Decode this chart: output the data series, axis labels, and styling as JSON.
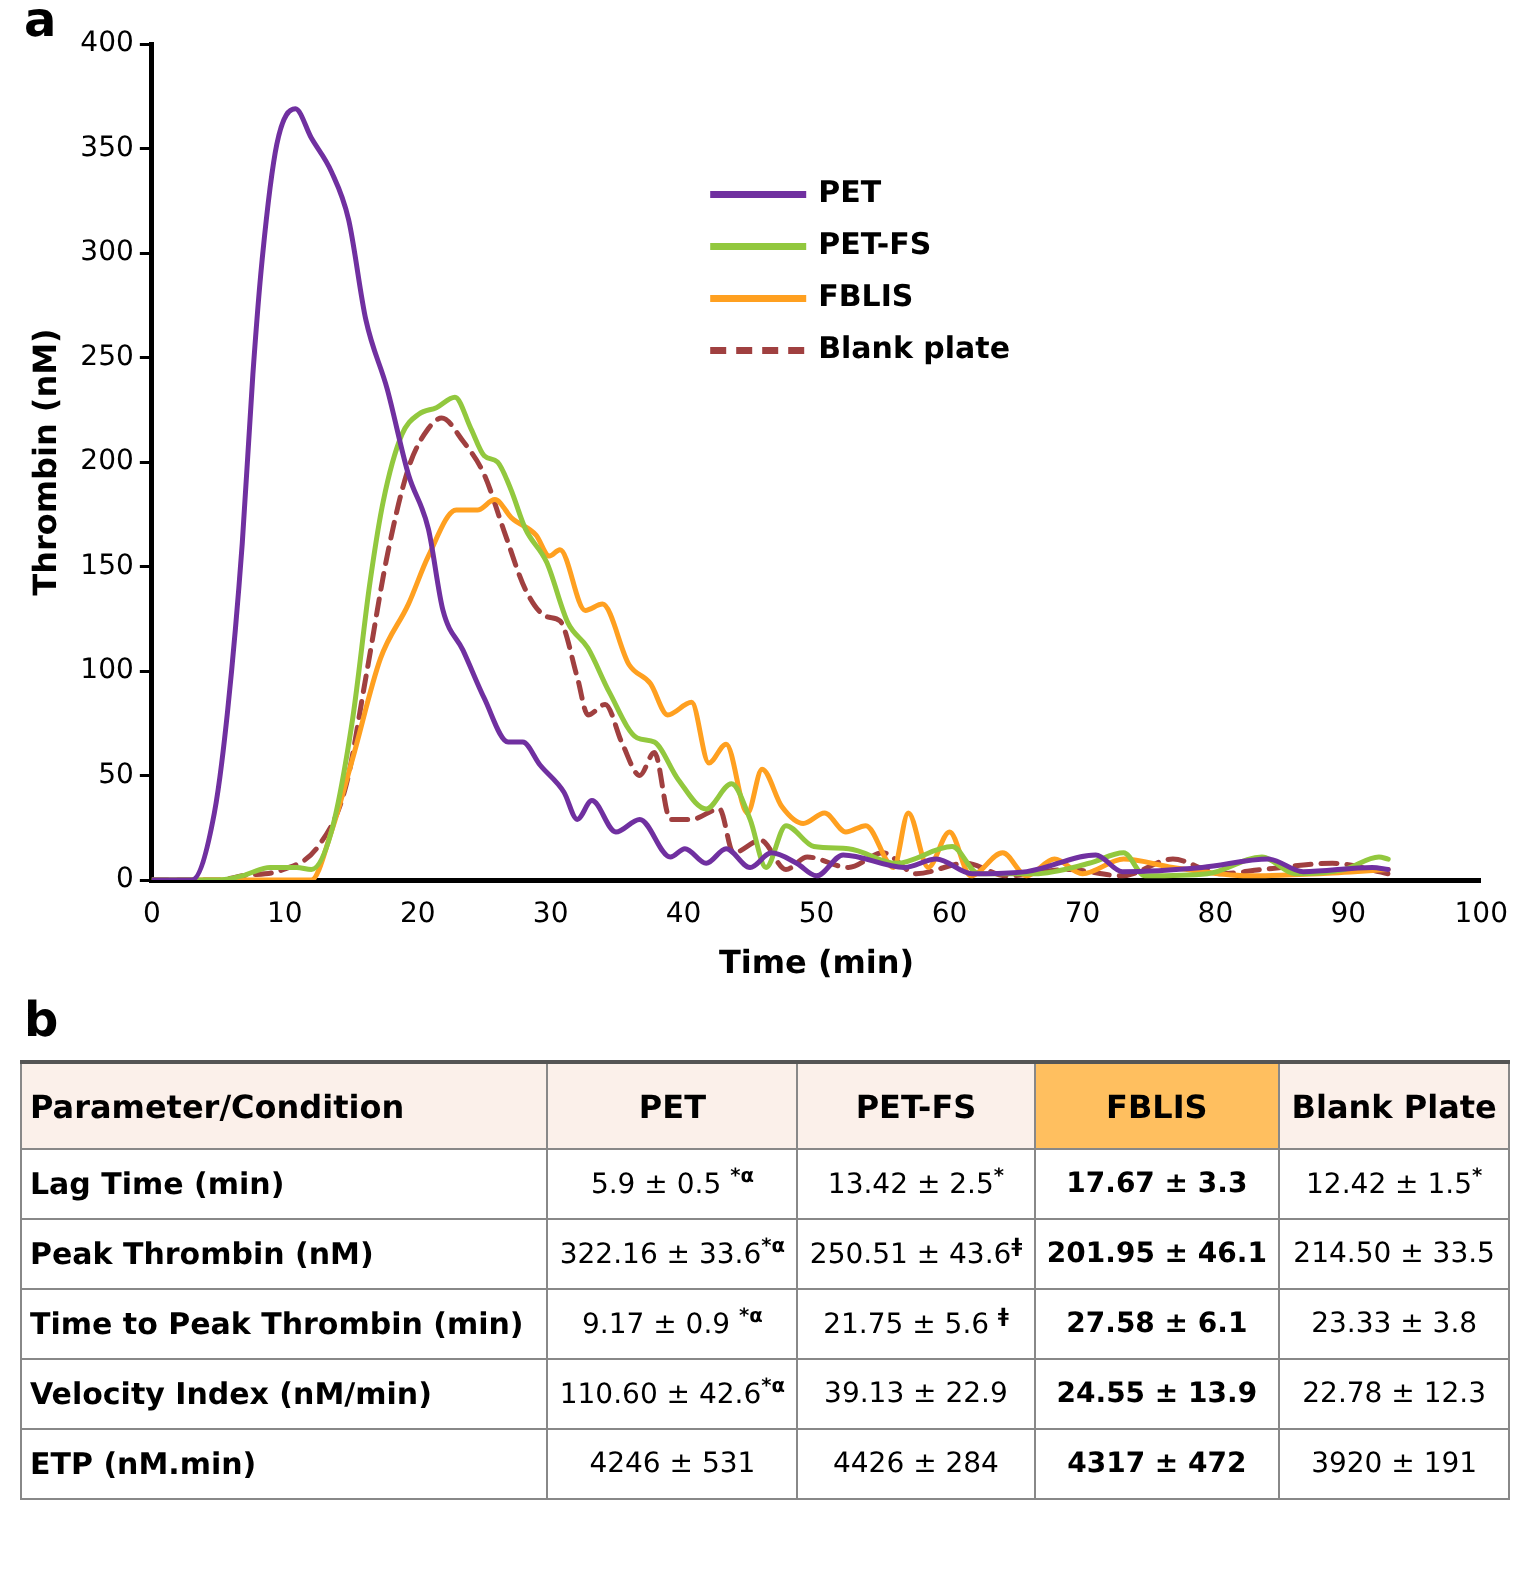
{
  "chart_data": [
    {
      "type": "line",
      "title": "a",
      "xlabel": "Time (min)",
      "ylabel": "Thrombin (nM)",
      "xlim": [
        0,
        100
      ],
      "xticks": [
        0,
        10,
        20,
        30,
        40,
        50,
        60,
        70,
        80,
        90,
        100
      ],
      "ylim": [
        0,
        400
      ],
      "yticks": [
        0,
        50,
        100,
        150,
        200,
        250,
        300,
        350,
        400
      ],
      "grid": false,
      "legend": "top right",
      "marker": "none",
      "series": [
        {
          "name": "PET",
          "color": "#7030a0",
          "line_style": "solid",
          "x": [
            0,
            3,
            4.7,
            5.7,
            6.8,
            7.6,
            8.3,
            9.4,
            10.8,
            12,
            13.5,
            14.8,
            16.1,
            17.7,
            19.3,
            20.8,
            21.9,
            23.4,
            25,
            26.8,
            27.9,
            29.2,
            31,
            32,
            33.1,
            34.9,
            36.7,
            39,
            40.1,
            41.7,
            43.2,
            45,
            46.6,
            48.5,
            50,
            52,
            56.6,
            59,
            61.7,
            65.8,
            71,
            73,
            79,
            84,
            86.6,
            91.8,
            93
          ],
          "values": [
            0,
            0,
            32,
            81,
            161,
            242,
            297,
            352,
            369,
            355,
            339,
            316,
            268,
            235,
            194,
            168,
            129,
            110,
            87,
            66,
            66,
            55,
            42,
            29,
            38,
            23,
            29,
            11,
            15,
            8,
            15,
            6,
            13,
            8,
            2,
            12,
            6,
            10,
            3,
            4,
            12,
            4,
            6,
            10,
            4,
            6,
            5
          ]
        },
        {
          "name": "PET-FS",
          "color": "#92c83e",
          "line_style": "solid",
          "x": [
            0,
            5,
            6.8,
            8.9,
            10.9,
            12,
            13.5,
            15.1,
            16.4,
            17.4,
            18.8,
            20.1,
            21.4,
            22.8,
            24,
            25,
            26,
            27,
            28.1,
            29.7,
            31.3,
            32.8,
            34.4,
            36.5,
            37.8,
            39.6,
            41.7,
            43.6,
            45,
            46.2,
            47.7,
            49.8,
            52.4,
            56,
            60.2,
            62.2,
            66.4,
            70.5,
            73.1,
            74.7,
            79.4,
            83.5,
            86,
            89.7,
            92.3,
            93
          ],
          "values": [
            0,
            0,
            2,
            6,
            6,
            5,
            23,
            77,
            142,
            181,
            213,
            223,
            226,
            231,
            216,
            203,
            200,
            187,
            168,
            152,
            123,
            111,
            90,
            68,
            66,
            48,
            34,
            46,
            29,
            6,
            26,
            16,
            15,
            8,
            16,
            3,
            3,
            8,
            13,
            2,
            3,
            11,
            3,
            5,
            11,
            10
          ]
        },
        {
          "name": "FBLIS",
          "color": "#ffa020",
          "line_style": "solid",
          "x": [
            0,
            12,
            13.5,
            15.1,
            17.2,
            19.3,
            20.8,
            22.9,
            24.5,
            25.8,
            27.1,
            28.9,
            29.9,
            30.7,
            32.6,
            33.9,
            35.9,
            37.5,
            38.8,
            40.6,
            41.9,
            43.2,
            44.8,
            45.9,
            47.4,
            49,
            50.6,
            52.2,
            53.7,
            55.8,
            56.9,
            58.4,
            60,
            61.6,
            64,
            65.8,
            67.9,
            70,
            73.1,
            76.8,
            82.5,
            87.8,
            93
          ],
          "values": [
            0,
            0,
            23,
            58,
            106,
            132,
            155,
            177,
            177,
            182,
            173,
            165,
            155,
            158,
            129,
            132,
            103,
            94,
            79,
            85,
            56,
            65,
            32,
            53,
            35,
            27,
            32,
            23,
            26,
            6,
            32,
            6,
            23,
            2,
            13,
            2,
            10,
            3,
            10,
            6,
            2,
            3,
            5
          ]
        },
        {
          "name": "Blank plate",
          "color": "#a04040",
          "line_style": "dashed",
          "x": [
            0,
            5,
            6.8,
            9.9,
            12.5,
            14.6,
            16.1,
            17.7,
            19.3,
            20.8,
            21.8,
            23.4,
            25,
            26.6,
            28.1,
            29.7,
            30.7,
            32,
            32.8,
            34.1,
            35.4,
            36.7,
            37.8,
            39,
            40.6,
            42.7,
            43.75,
            45.8,
            47.7,
            49.3,
            52.4,
            55,
            57.5,
            61.2,
            64.3,
            69,
            73,
            76.8,
            80.4,
            83.5,
            88.8,
            93
          ],
          "values": [
            0,
            0,
            2,
            5,
            16,
            45,
            97,
            155,
            197,
            216,
            221,
            210,
            194,
            165,
            139,
            126,
            124,
            97,
            79,
            84,
            65,
            50,
            61,
            29,
            29,
            34,
            13,
            19,
            5,
            11,
            6,
            13,
            3,
            8,
            2,
            5,
            2,
            10,
            3,
            5,
            8,
            3
          ]
        }
      ]
    },
    {
      "type": "other",
      "title": "b",
      "categories": [
        "Parameter/Condition",
        "PET",
        "PET-FS",
        "FBLIS",
        "Blank Plate"
      ],
      "colors": [
        "#fbf0ea",
        "#fbf0ea",
        "#fbf0ea",
        "#ffbf5f",
        "#fbf0ea"
      ],
      "y_categories": [
        "Lag Time (min)",
        "Peak Thrombin (nM)",
        "Time to Peak Thrombin (min)",
        "Velocity Index (nM/min)",
        "ETP (nM.min)"
      ],
      "cell_labels": [
        [
          "5.9 ± 0.5 $^{*α}$",
          "13.42 ± 2.5$^{*}$",
          "17.67 ± 3.3",
          "12.42 ± 1.5$^{*}$"
        ],
        [
          "322.16 ± 33.6$^{*α}$",
          "250.51 ± 43.6$^{ǂ}$",
          "201.95 ± 46.1",
          "214.50 ± 33.5"
        ],
        [
          "9.17 ± 0.9 $^{*α}$",
          "21.75 ± 5.6 $^{ǂ}$",
          "27.58 ± 6.1",
          "23.33 ± 3.8"
        ],
        [
          "110.60 ± 42.6$^{*α}$",
          "39.13 ± 22.9",
          "24.55 ± 13.9",
          "22.78 ± 12.3"
        ],
        [
          "4246 ± 531",
          "4426 ± 284",
          "4317 ± 472",
          "3920 ± 191"
        ]
      ]
    }
  ]
}
